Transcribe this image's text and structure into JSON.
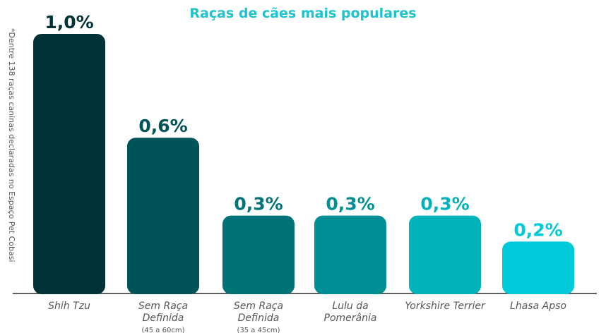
{
  "chart_data": {
    "type": "bar",
    "title": "Raças de cães mais populares",
    "footnote": "*Dentre 138 raças caninas declaradas no Espaço Pet Cobasi",
    "categories": [
      {
        "label": [
          "Shih Tzu"
        ],
        "sub": ""
      },
      {
        "label": [
          "Sem Raça",
          "Definida"
        ],
        "sub": "(45 a 60cm)"
      },
      {
        "label": [
          "Sem Raça",
          "Definida"
        ],
        "sub": "(35 a 45cm)"
      },
      {
        "label": [
          "Lulu da",
          "Pomerânia"
        ],
        "sub": ""
      },
      {
        "label": [
          "Yorkshire Terrier"
        ],
        "sub": ""
      },
      {
        "label": [
          "Lhasa Apso"
        ],
        "sub": ""
      }
    ],
    "values": [
      1.0,
      0.6,
      0.3,
      0.3,
      0.3,
      0.2
    ],
    "value_labels": [
      "1,0%",
      "0,6%",
      "0,3%",
      "0,3%",
      "0,3%",
      "0,2%"
    ],
    "bar_colors": [
      "#003236",
      "#005359",
      "#007378",
      "#008f94",
      "#00b2ba",
      "#00cad9"
    ],
    "label_colors": [
      "#003236",
      "#005359",
      "#007378",
      "#008f94",
      "#00b2ba",
      "#00cad9"
    ],
    "ylim": [
      0,
      1.0
    ],
    "grid": false,
    "legend": "none"
  }
}
